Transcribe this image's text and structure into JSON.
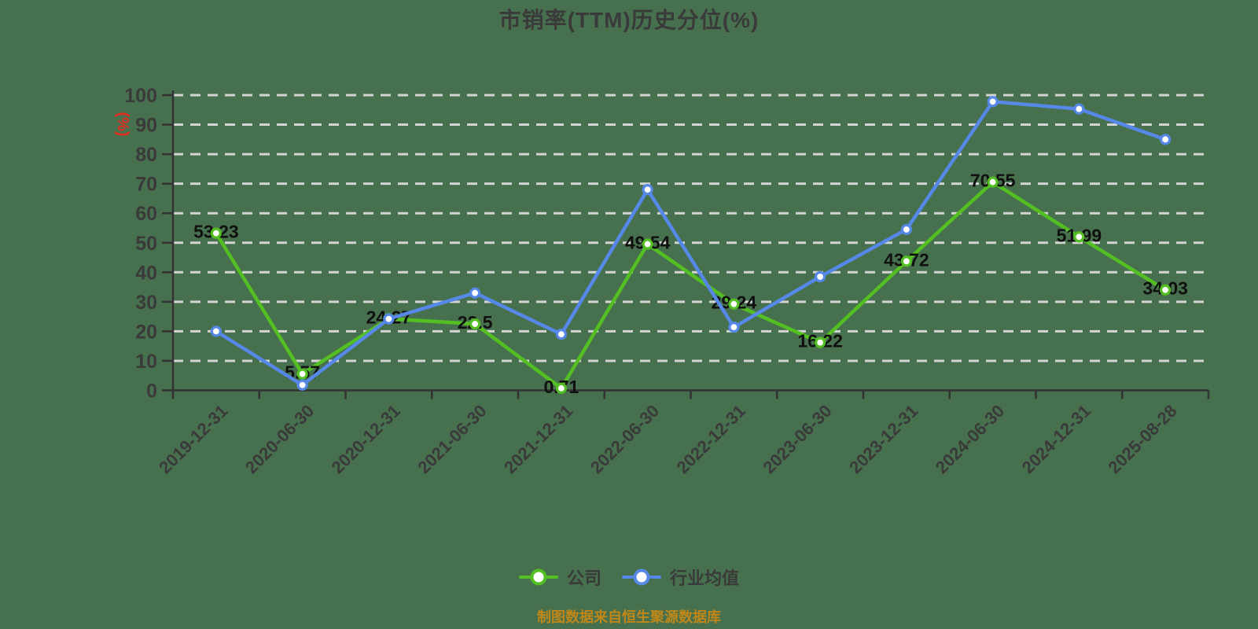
{
  "footer": {
    "text": "制图数据来自恒生聚源数据库"
  },
  "colors": {
    "background": "#47714e",
    "title_text": "#3a3a3a",
    "axis_line": "#333333",
    "tick_label": "#3a3a3a",
    "grid_line": "#d4d4d4",
    "data_label": "#101010",
    "y_axis_name_color": "#e02b1d",
    "footer_text": "#c08718",
    "marker_fill": "#ffffff"
  },
  "chart_data": {
    "type": "line",
    "title": "市销率(TTM)历史分位(%)",
    "y_axis_name": "(%)",
    "xlabel": "",
    "ylabel": "(%)",
    "ylim": [
      0,
      100
    ],
    "ytick_step": 10,
    "grid": "horizontal dashed lines on",
    "legend_position": "bottom center",
    "x_label_rotation": 45,
    "categories": [
      "2019-12-31",
      "2020-06-30",
      "2020-12-31",
      "2021-06-30",
      "2021-12-31",
      "2022-06-30",
      "2022-12-31",
      "2023-06-30",
      "2023-12-31",
      "2024-06-30",
      "2024-12-31",
      "2025-08-28"
    ],
    "series": [
      {
        "name": "公司",
        "color": "#53bf22",
        "labels_visible": true,
        "values": [
          53.23,
          5.57,
          24.27,
          22.5,
          0.71,
          49.54,
          29.24,
          16.22,
          43.72,
          70.55,
          51.99,
          34.03
        ]
      },
      {
        "name": "行业均值",
        "color": "#5688e8",
        "labels_visible": false,
        "values": [
          20,
          1.8,
          24.2,
          33,
          19,
          68,
          21.4,
          38.5,
          54.5,
          97.8,
          95.3,
          85
        ]
      }
    ]
  }
}
